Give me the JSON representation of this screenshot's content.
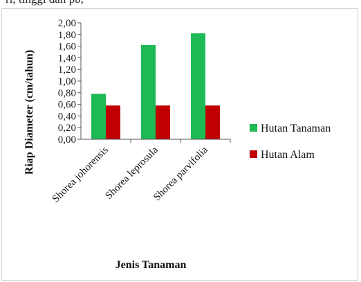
{
  "top_strip_text": "ri, tinggi dan pb,",
  "chart_data": {
    "type": "bar",
    "categories": [
      "Shorea johorensis",
      "Shorea leprosula",
      "Shorea parvifolia"
    ],
    "series": [
      {
        "name": "Hutan Tanaman",
        "values": [
          0.78,
          1.62,
          1.82
        ],
        "color": "#1db954"
      },
      {
        "name": "Hutan Alam",
        "values": [
          0.58,
          0.58,
          0.58
        ],
        "color": "#c00000"
      }
    ],
    "xlabel": "Jenis Tanaman",
    "ylabel": "Riap Diameter (cm/tahun)",
    "ylim": [
      0,
      2.0
    ],
    "yticks": [
      "0,00",
      "0,20",
      "0,40",
      "0,60",
      "0,80",
      "1,00",
      "1,20",
      "1,40",
      "1,60",
      "1,80",
      "2,00"
    ],
    "grid": false,
    "legend_position": "right"
  }
}
